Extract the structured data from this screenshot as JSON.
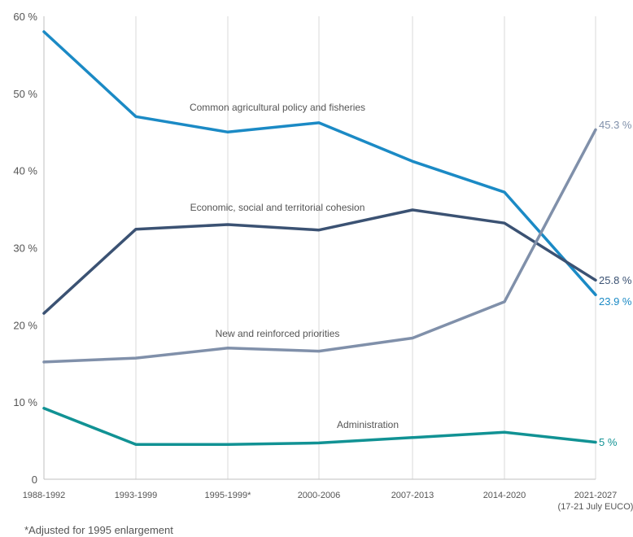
{
  "chart_data": {
    "type": "line",
    "categories": [
      "1988-1992",
      "1993-1999",
      "1995-1999*",
      "2000-2006",
      "2007-2013",
      "2014-2020",
      "2021-2027"
    ],
    "category_sublabels": [
      "",
      "",
      "",
      "",
      "",
      "",
      "(17-21 July EUCO)"
    ],
    "ylim": [
      0,
      60
    ],
    "yticks": [
      {
        "value": 0,
        "label": "0"
      },
      {
        "value": 10,
        "label": "10 %"
      },
      {
        "value": 20,
        "label": "20 %"
      },
      {
        "value": 30,
        "label": "30 %"
      },
      {
        "value": 40,
        "label": "40 %"
      },
      {
        "value": 50,
        "label": "50 %"
      },
      {
        "value": 60,
        "label": "60 %"
      }
    ],
    "grid": "vertical",
    "series": [
      {
        "name": "Common agricultural policy and fisheries",
        "color": "#1b8ac5",
        "values": [
          58.0,
          47.0,
          45.0,
          46.2,
          41.2,
          37.2,
          23.9
        ],
        "end_label": "23.9 %"
      },
      {
        "name": "Economic, social and territorial cohesion",
        "color": "#3b5273",
        "values": [
          21.5,
          32.4,
          33.0,
          32.3,
          34.9,
          33.2,
          25.8
        ],
        "end_label": "25.8 %"
      },
      {
        "name": "New and reinforced priorities",
        "color": "#8090aa",
        "values": [
          15.2,
          15.7,
          17.0,
          16.6,
          18.3,
          23.0,
          45.3
        ],
        "end_label": "45.3 %"
      },
      {
        "name": "Administration",
        "color": "#119294",
        "values": [
          9.2,
          4.5,
          4.5,
          4.7,
          5.4,
          6.1,
          4.8
        ],
        "end_label": "5 %"
      }
    ]
  },
  "footnote": "*Adjusted for 1995  enlargement"
}
